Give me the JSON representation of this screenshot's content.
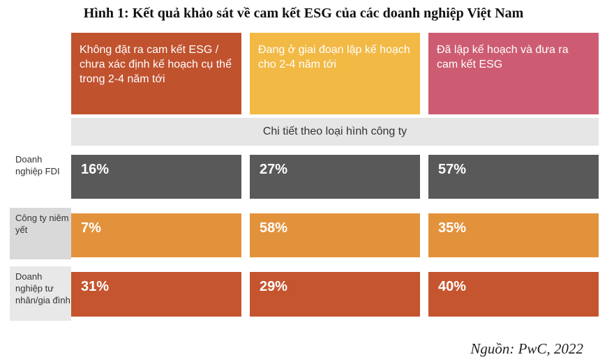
{
  "title": "Hình 1: Kết quả khảo sát về cam kết ESG của các doanh nghiệp Việt Nam",
  "source": "Nguồn: PwC, 2022",
  "colors": {
    "header1": "#c0522e",
    "header2": "#f2b945",
    "header3": "#cd5c72",
    "row_fdi": "#595959",
    "row_listed": "#e3923c",
    "row_private": "#c4552f"
  },
  "chart_data": {
    "type": "table",
    "title": "Hình 1: Kết quả khảo sát về cam kết ESG của các doanh nghiệp Việt Nam",
    "subtitle": "Chi tiết theo loại hình công ty",
    "columns": [
      "Không đặt ra cam kết ESG / chưa xác định kế hoạch cụ thể trong 2-4 năm tới",
      "Đang ở giai đoạn lập kế hoạch cho 2-4 năm tới",
      "Đã lập kế hoạch và đưa ra cam kết ESG"
    ],
    "rows": [
      {
        "label": "Doanh nghiệp FDI",
        "values": [
          "16%",
          "27%",
          "57%"
        ]
      },
      {
        "label": "Công ty niêm yết",
        "values": [
          "7%",
          "58%",
          "35%"
        ]
      },
      {
        "label": "Doanh nghiệp tư nhân/gia đình",
        "values": [
          "31%",
          "29%",
          "40%"
        ]
      }
    ]
  }
}
